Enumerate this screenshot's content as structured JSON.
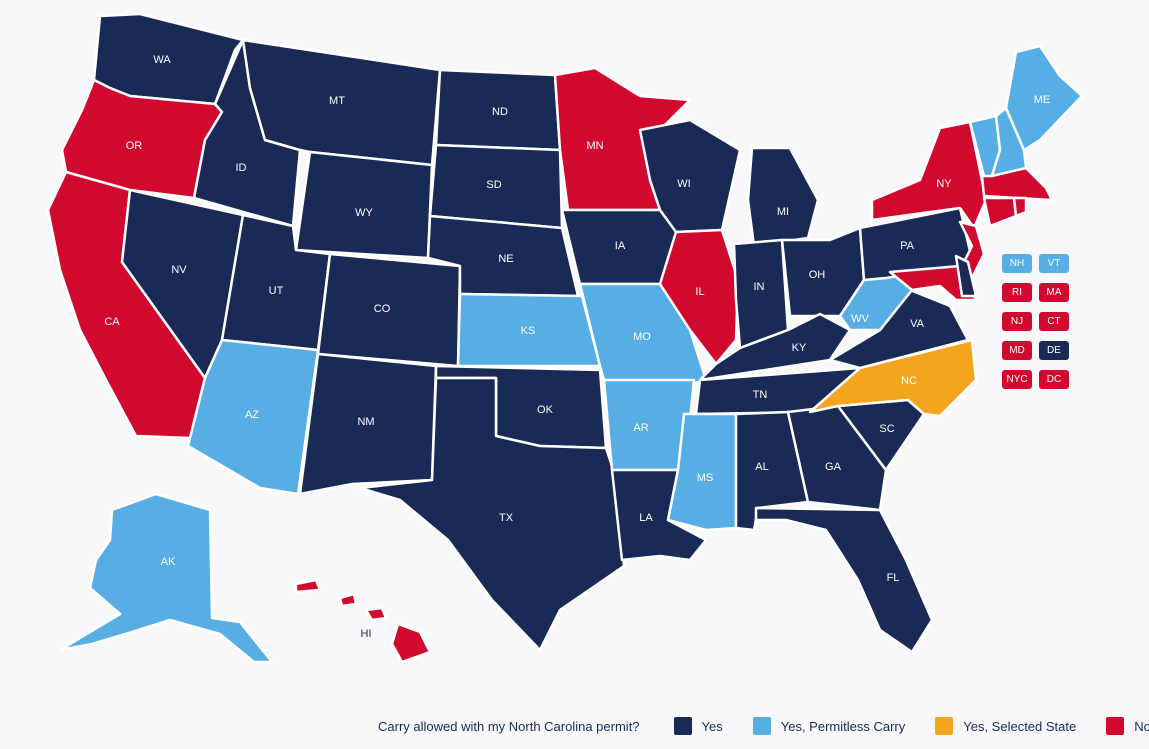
{
  "colors": {
    "yes": "#1a2a56",
    "permitless": "#56aee5",
    "selected": "#f3a51d",
    "no": "#d2092e"
  },
  "legend": {
    "question": "Carry allowed with my North Carolina permit?",
    "items": [
      {
        "label": "Yes",
        "status": "yes"
      },
      {
        "label": "Yes, Permitless Carry",
        "status": "permitless"
      },
      {
        "label": "Yes, Selected State",
        "status": "selected"
      },
      {
        "label": "No",
        "status": "no"
      }
    ]
  },
  "states": {
    "WA": "yes",
    "OR": "no",
    "CA": "no",
    "ID": "yes",
    "NV": "yes",
    "MT": "yes",
    "WY": "yes",
    "UT": "yes",
    "AZ": "permitless",
    "CO": "yes",
    "NM": "yes",
    "ND": "yes",
    "SD": "yes",
    "NE": "yes",
    "KS": "permitless",
    "OK": "yes",
    "TX": "yes",
    "MN": "no",
    "IA": "yes",
    "MO": "permitless",
    "AR": "permitless",
    "LA": "yes",
    "WI": "yes",
    "IL": "no",
    "MI": "yes",
    "IN": "yes",
    "OH": "yes",
    "KY": "yes",
    "TN": "yes",
    "MS": "permitless",
    "AL": "yes",
    "GA": "yes",
    "FL": "yes",
    "SC": "yes",
    "NC": "selected",
    "VA": "yes",
    "WV": "permitless",
    "PA": "yes",
    "NY": "no",
    "ME": "permitless",
    "AK": "permitless",
    "HI": "no",
    "NH": "permitless",
    "VT": "permitless",
    "MA": "no",
    "RI": "no",
    "CT": "no",
    "NJ": "no",
    "MD": "no",
    "DE": "yes",
    "DC": "no",
    "NYC": "no"
  },
  "small_states": [
    {
      "code": "NH"
    },
    {
      "code": "VT"
    },
    {
      "code": "RI"
    },
    {
      "code": "MA"
    },
    {
      "code": "NJ"
    },
    {
      "code": "CT"
    },
    {
      "code": "MD"
    },
    {
      "code": "DE"
    },
    {
      "code": "NYC"
    },
    {
      "code": "DC"
    }
  ]
}
